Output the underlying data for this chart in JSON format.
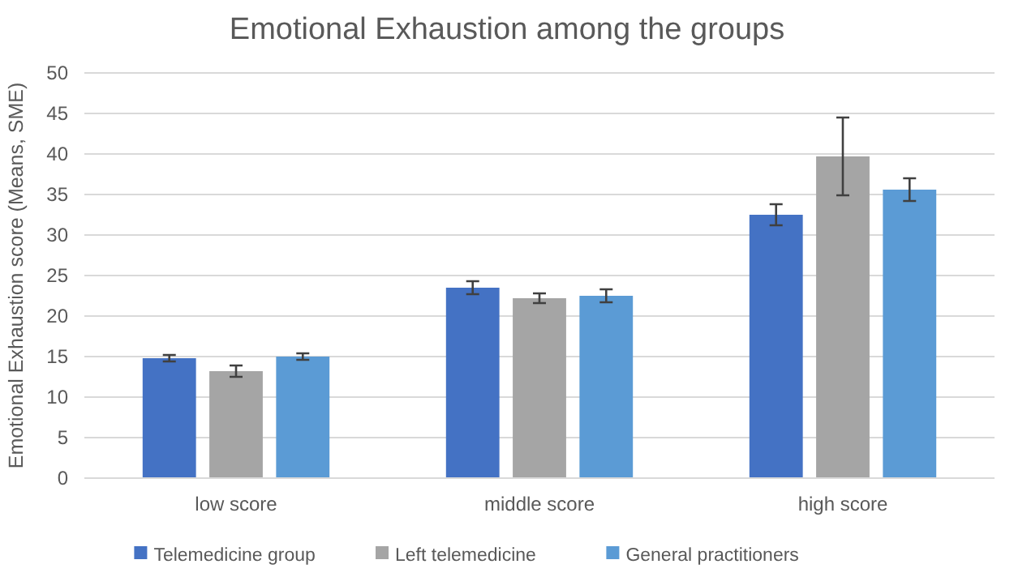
{
  "chart_data": {
    "type": "bar",
    "title": "Emotional Exhaustion among the groups",
    "ylabel": "Emotional Exhaustion score (Means, SME)",
    "categories": [
      "low score",
      "middle score",
      "high score"
    ],
    "series": [
      {
        "name": "Telemedicine group",
        "color": "#4472c4",
        "values": [
          14.8,
          23.5,
          32.5
        ],
        "errors": [
          0.4,
          0.8,
          1.3
        ]
      },
      {
        "name": "Left telemedicine",
        "color": "#a5a5a5",
        "values": [
          13.2,
          22.2,
          39.7
        ],
        "errors": [
          0.7,
          0.6,
          4.8
        ]
      },
      {
        "name": "General practitioners",
        "color": "#5b9bd5",
        "values": [
          15.0,
          22.5,
          35.6
        ],
        "errors": [
          0.4,
          0.8,
          1.4
        ]
      }
    ],
    "ylim": [
      0,
      50
    ],
    "yticks": [
      0,
      5,
      10,
      15,
      20,
      25,
      30,
      35,
      40,
      45,
      50
    ],
    "grid": "y",
    "legend": "bottom"
  }
}
